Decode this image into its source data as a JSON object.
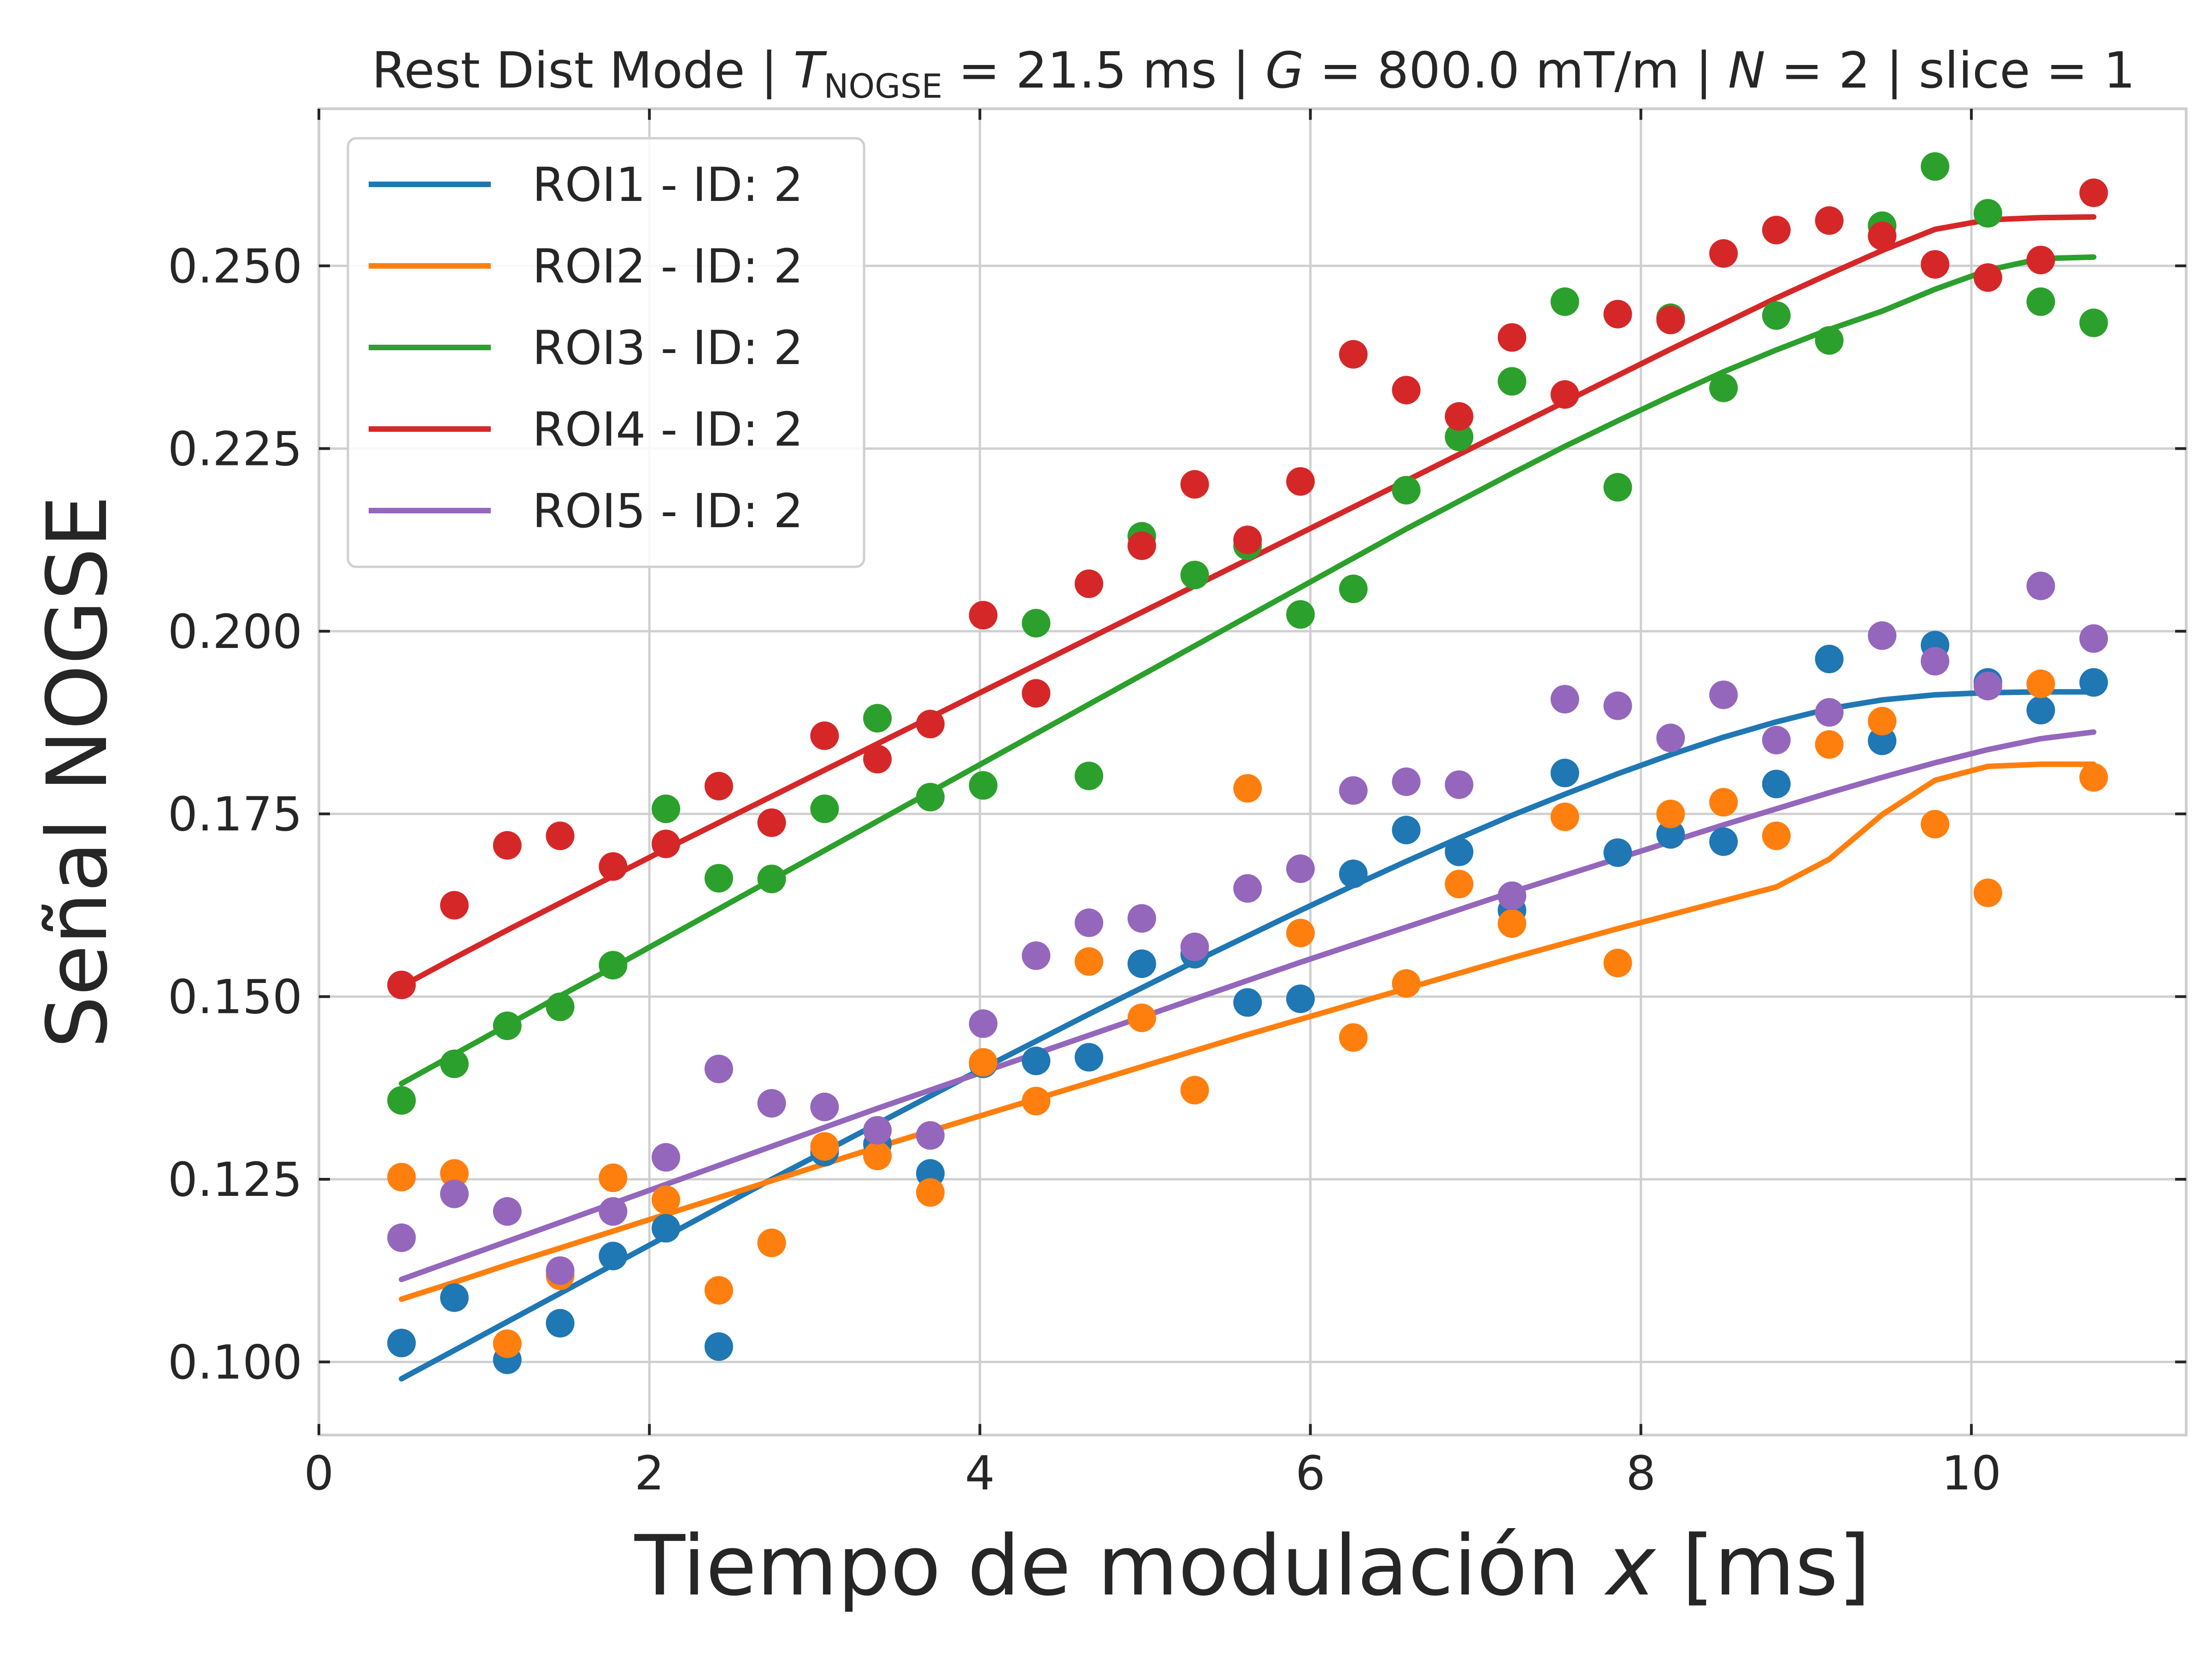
{
  "chart_data": {
    "type": "scatter",
    "title": {
      "prefix": "Rest Dist Mode | ",
      "t_symbol": "T",
      "t_subscript": "NOGSE",
      "t_value": " = 21.5 ms | ",
      "g_symbol": "G",
      "g_value": " = 800.0 mT/m | ",
      "n_symbol": "N",
      "n_value": " = 2 | slice = 1"
    },
    "xlabel": {
      "text": "Tiempo de modulación ",
      "var": "x",
      "unit": " [ms]"
    },
    "ylabel": "Señal NOGSE",
    "xlim": [
      0,
      11.3
    ],
    "ylim": [
      0.09,
      0.2715
    ],
    "xticks": [
      0,
      2,
      4,
      6,
      8,
      10
    ],
    "xtick_labels": [
      "0",
      "2",
      "4",
      "6",
      "8",
      "10"
    ],
    "yticks": [
      0.1,
      0.125,
      0.15,
      0.175,
      0.2,
      0.225,
      0.25
    ],
    "ytick_labels": [
      "0.100",
      "0.125",
      "0.150",
      "0.175",
      "0.200",
      "0.225",
      "0.250"
    ],
    "grid": true,
    "legend_position": "upper-left",
    "x": [
      0.5,
      0.82,
      1.14,
      1.46,
      1.78,
      2.1,
      2.42,
      2.74,
      3.06,
      3.38,
      3.7,
      4.02,
      4.34,
      4.66,
      4.98,
      5.3,
      5.62,
      5.94,
      6.26,
      6.58,
      6.9,
      7.22,
      7.54,
      7.86,
      8.18,
      8.5,
      8.82,
      9.14,
      9.46,
      9.78,
      10.1,
      10.42,
      10.74
    ],
    "series": [
      {
        "name": "ROI1 - ID: 2",
        "color": "#1f77b4",
        "points": [
          0.1026,
          0.1088,
          0.1003,
          0.1053,
          0.1145,
          0.1183,
          0.1021,
          0.1163,
          0.1287,
          0.1298,
          0.1258,
          0.1408,
          0.1412,
          0.1417,
          0.1545,
          0.1558,
          0.1492,
          0.1497,
          0.1668,
          0.1728,
          0.1698,
          0.1618,
          0.1806,
          0.1697,
          0.1722,
          0.1712,
          0.1791,
          0.1962,
          0.185,
          0.1981,
          0.193,
          0.1892,
          0.193
        ],
        "fit": [
          0.0977,
          0.1016,
          0.1055,
          0.1094,
          0.1133,
          0.1172,
          0.1211,
          0.125,
          0.1288,
          0.1326,
          0.1364,
          0.1402,
          0.1439,
          0.1476,
          0.1512,
          0.1548,
          0.1583,
          0.1618,
          0.1652,
          0.1685,
          0.1717,
          0.1748,
          0.1777,
          0.1805,
          0.1831,
          0.1855,
          0.1876,
          0.1894,
          0.1906,
          0.1913,
          0.1916,
          0.1917,
          0.1917
        ]
      },
      {
        "name": "ROI2 - ID: 2",
        "color": "#ff7f0e",
        "points": [
          0.1253,
          0.1258,
          0.1025,
          0.1118,
          0.1252,
          0.1222,
          0.1098,
          0.1163,
          0.1295,
          0.1282,
          0.1232,
          0.141,
          0.1357,
          0.1548,
          0.1471,
          0.1372,
          0.1785,
          0.1587,
          0.1444,
          0.1518,
          0.1654,
          0.16,
          0.1746,
          0.1546,
          0.175,
          0.1766,
          0.172,
          0.1845,
          0.1877,
          0.1736,
          0.1642,
          0.1928,
          0.18
        ],
        "fit": [
          0.1086,
          0.1109,
          0.1133,
          0.1156,
          0.1179,
          0.1202,
          0.1225,
          0.1248,
          0.1271,
          0.1294,
          0.1316,
          0.1338,
          0.136,
          0.1382,
          0.1404,
          0.1426,
          0.1448,
          0.1469,
          0.149,
          0.1511,
          0.1532,
          0.1553,
          0.1573,
          0.1593,
          0.1612,
          0.1631,
          0.165,
          0.1688,
          0.1749,
          0.1796,
          0.1815,
          0.1818,
          0.1818
        ]
      },
      {
        "name": "ROI3 - ID: 2",
        "color": "#2ca02c",
        "points": [
          0.1358,
          0.1408,
          0.146,
          0.1486,
          0.1543,
          0.1757,
          0.1662,
          0.1661,
          0.1757,
          0.1881,
          0.1773,
          0.1789,
          0.2011,
          0.1802,
          0.213,
          0.2077,
          0.2117,
          0.2023,
          0.2058,
          0.2193,
          0.2266,
          0.2342,
          0.2451,
          0.2197,
          0.2429,
          0.2333,
          0.2432,
          0.2398,
          0.2555,
          0.2636,
          0.2572,
          0.2451,
          0.2422
        ],
        "fit": [
          0.1381,
          0.1421,
          0.1461,
          0.1501,
          0.154,
          0.158,
          0.162,
          0.166,
          0.17,
          0.174,
          0.178,
          0.182,
          0.186,
          0.19,
          0.194,
          0.198,
          0.202,
          0.206,
          0.21,
          0.214,
          0.2178,
          0.2216,
          0.2253,
          0.2288,
          0.2322,
          0.2355,
          0.2385,
          0.2413,
          0.2438,
          0.2468,
          0.2494,
          0.251,
          0.2512
        ]
      },
      {
        "name": "ROI4 - ID: 2",
        "color": "#d62728",
        "points": [
          0.1516,
          0.1625,
          0.1707,
          0.172,
          0.1678,
          0.1709,
          0.1788,
          0.1738,
          0.1857,
          0.1825,
          0.1873,
          0.2022,
          0.1915,
          0.2065,
          0.2117,
          0.2201,
          0.2125,
          0.2205,
          0.2379,
          0.233,
          0.2294,
          0.2402,
          0.2324,
          0.2434,
          0.2426,
          0.2517,
          0.2549,
          0.2562,
          0.2541,
          0.2502,
          0.2484,
          0.2508,
          0.26
        ],
        "fit": [
          0.1514,
          0.1553,
          0.1591,
          0.1628,
          0.1665,
          0.1702,
          0.1738,
          0.1774,
          0.181,
          0.1846,
          0.1882,
          0.1918,
          0.1954,
          0.199,
          0.2026,
          0.2062,
          0.2098,
          0.2134,
          0.217,
          0.2206,
          0.2242,
          0.2278,
          0.2314,
          0.235,
          0.2386,
          0.2421,
          0.2456,
          0.2489,
          0.2521,
          0.255,
          0.2563,
          0.2566,
          0.2567
        ]
      },
      {
        "name": "ROI5 - ID: 2",
        "color": "#9467bd",
        "points": [
          0.117,
          0.123,
          0.1206,
          0.1125,
          0.1206,
          0.128,
          0.1401,
          0.1354,
          0.1349,
          0.1317,
          0.131,
          0.1463,
          0.1556,
          0.1601,
          0.1607,
          0.1568,
          0.1648,
          0.1675,
          0.1782,
          0.1794,
          0.179,
          0.1638,
          0.1907,
          0.1898,
          0.1854,
          0.1913,
          0.1851,
          0.1889,
          0.1994,
          0.1959,
          0.1925,
          0.2062,
          0.199
        ],
        "fit": [
          0.1113,
          0.1139,
          0.1165,
          0.1191,
          0.1217,
          0.1243,
          0.1269,
          0.1295,
          0.1321,
          0.1347,
          0.1372,
          0.1397,
          0.1422,
          0.1447,
          0.1472,
          0.1497,
          0.1522,
          0.1547,
          0.1571,
          0.1595,
          0.1619,
          0.1643,
          0.1666,
          0.1689,
          0.1712,
          0.1735,
          0.1757,
          0.1779,
          0.18,
          0.182,
          0.1838,
          0.1853,
          0.1862
        ]
      }
    ]
  }
}
